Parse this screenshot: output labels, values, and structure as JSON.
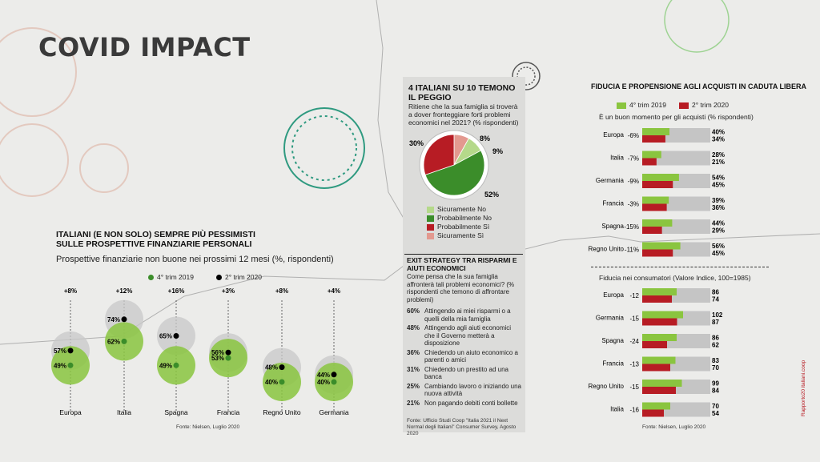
{
  "title": "COVID IMPACT",
  "colors": {
    "green": "#8ac53f",
    "green_dark": "#3b8d2a",
    "red": "#b71c24",
    "grey": "#c5c5c5",
    "pink": "#e3998f",
    "light_green": "#b5d98a"
  },
  "left": {
    "heading": "ITALIANI (E NON SOLO) SEMPRE PIÙ PESSIMISTI SULLE PROSPETTIVE FINANZIARIE PERSONALI",
    "subtitle": "Prospettive finanziarie non buone nei prossimi 12 mesi (%, rispondenti)",
    "legend_2019": "4° trim 2019",
    "legend_2020": "2° trim 2020",
    "source": "Fonte: Nielsen, Luglio 2020"
  },
  "middle": {
    "heading": "4 ITALIANI SU 10 TEMONO IL PEGGIO",
    "question": "Ritiene che la sua famiglia si troverà a dover fronteggiare forti problemi economici nel 2021? (% rispondenti)",
    "exit_heading": "EXIT STRATEGY TRA RISPARMI E AIUTI ECONOMICI",
    "exit_question": "Come pensa che la sua famiglia affronterà tali problemi economici? (% rispondenti che temono di affrontare problemi)",
    "exit_items": [
      {
        "pct": "60%",
        "text": "Attingendo ai miei risparmi o a quelli della mia famiglia"
      },
      {
        "pct": "48%",
        "text": "Attingendo agli aiuti economici che il Governo metterà a disposizione"
      },
      {
        "pct": "36%",
        "text": "Chiedendo un aiuto economico a parenti o amici"
      },
      {
        "pct": "31%",
        "text": "Chiedendo un prestito ad una banca"
      },
      {
        "pct": "25%",
        "text": "Cambiando lavoro o iniziando una nuova attività"
      },
      {
        "pct": "21%",
        "text": "Non pagando debiti conti bollette"
      }
    ],
    "source": "Fonte: Ufficio Studi Coop \"Italia 2021 il Next Normal degli Italiani\" Consumer Survey, Agosto 2020"
  },
  "right": {
    "heading": "FIDUCIA E PROPENSIONE AGLI ACQUISTI IN CADUTA LIBERA",
    "legend_2019": "4° trim 2019",
    "legend_2020": "2° trim 2020",
    "sub1": "È un buon momento per gli acquisti (% rispondenti)",
    "sub2": "Fiducia nei consumatori (Valore Indice, 100=1985)",
    "source": "Fonte: Nielsen, Luglio 2020"
  },
  "side_credit": "Rapporto20 italiani.coop",
  "chart_data": [
    {
      "type": "scatter",
      "title": "Prospettive finanziarie non buone nei prossimi 12 mesi (%, rispondenti)",
      "series_names": [
        "4° trim 2019",
        "2° trim 2020"
      ],
      "categories": [
        "Europa",
        "Italia",
        "Spagna",
        "Francia",
        "Regno Unito",
        "Germania"
      ],
      "values_2019": [
        49,
        62,
        49,
        53,
        40,
        40
      ],
      "values_2020": [
        57,
        74,
        65,
        56,
        48,
        44
      ],
      "labels_2019": [
        "49%",
        "62%",
        "49%",
        "53%",
        "40%",
        "40%"
      ],
      "labels_2020": [
        "57%",
        "74%",
        "65%",
        "56%",
        "48%",
        "44%"
      ],
      "deltas": [
        "+8%",
        "+12%",
        "+16%",
        "+3%",
        "+8%",
        "+4%"
      ]
    },
    {
      "type": "pie",
      "title": "Ritiene che la sua famiglia si troverà a dover fronteggiare forti problemi economici nel 2021?",
      "categories": [
        "Sicuramente No",
        "Probabilmente No",
        "Probabilmente Sì",
        "Sicuramente Sì"
      ],
      "values": [
        9,
        52,
        30,
        8
      ],
      "labels": [
        "9%",
        "52%",
        "30%",
        "8%"
      ]
    },
    {
      "type": "bar",
      "title": "È un buon momento per gli acquisti (% rispondenti)",
      "categories": [
        "Europa",
        "Italia",
        "Germania",
        "Francia",
        "Spagna",
        "Regno Unito"
      ],
      "series": [
        {
          "name": "4° trim 2019",
          "values": [
            40,
            28,
            54,
            39,
            44,
            56
          ]
        },
        {
          "name": "2° trim 2020",
          "values": [
            34,
            21,
            45,
            36,
            29,
            45
          ]
        }
      ],
      "deltas": [
        "-6%",
        "-7%",
        "-9%",
        "-3%",
        "-15%",
        "-11%"
      ],
      "labels_2019": [
        "40%",
        "28%",
        "54%",
        "39%",
        "44%",
        "56%"
      ],
      "labels_2020": [
        "34%",
        "21%",
        "45%",
        "36%",
        "29%",
        "45%"
      ],
      "xlim": [
        0,
        100
      ]
    },
    {
      "type": "bar",
      "title": "Fiducia nei consumatori (Valore Indice, 100=1985)",
      "categories": [
        "Europa",
        "Germania",
        "Spagna",
        "Francia",
        "Regno Unito",
        "Italia"
      ],
      "series": [
        {
          "name": "4° trim 2019",
          "values": [
            86,
            102,
            86,
            83,
            99,
            70
          ]
        },
        {
          "name": "2° trim 2020",
          "values": [
            74,
            87,
            62,
            70,
            84,
            54
          ]
        }
      ],
      "deltas": [
        "-12",
        "-15",
        "-24",
        "-13",
        "-15",
        "-16"
      ],
      "xlim": [
        0,
        150
      ]
    }
  ]
}
